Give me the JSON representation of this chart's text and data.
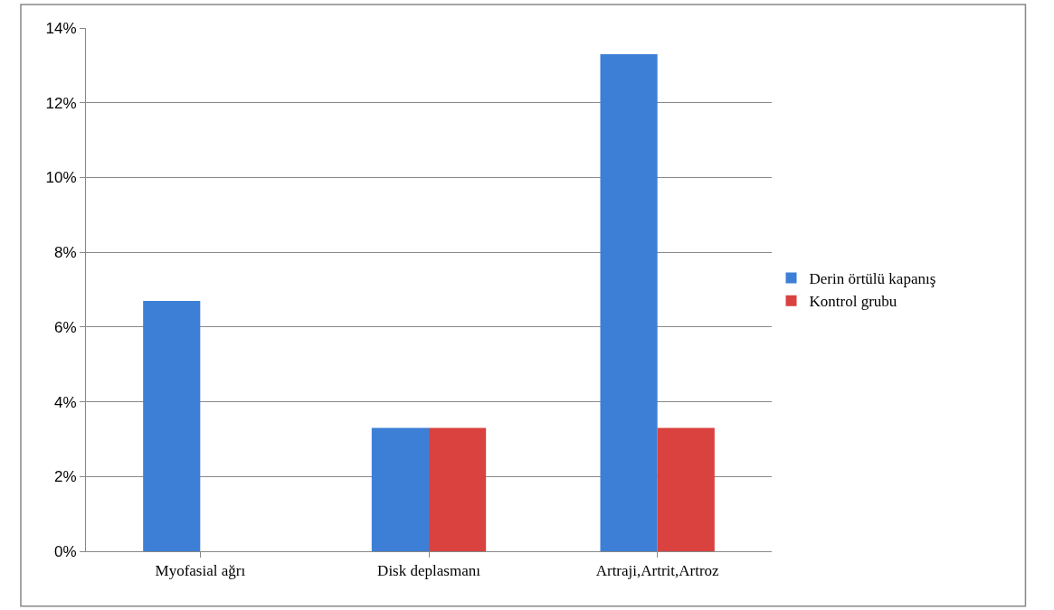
{
  "chart_data": {
    "type": "bar",
    "categories": [
      "Myofasial ağrı",
      "Disk deplasmanı",
      "Artraji,Artrit,Artroz"
    ],
    "series": [
      {
        "name": "Derin örtülü kapanış",
        "color": "#3d7fd6",
        "values": [
          6.7,
          3.3,
          13.3
        ]
      },
      {
        "name": "Kontrol grubu",
        "color": "#d9423f",
        "values": [
          0,
          3.3,
          3.3
        ]
      }
    ],
    "ylim": [
      0,
      14
    ],
    "yticks": [
      {
        "value": 0,
        "label": "0%"
      },
      {
        "value": 2,
        "label": "2%"
      },
      {
        "value": 4,
        "label": "4%"
      },
      {
        "value": 6,
        "label": "6%"
      },
      {
        "value": 8,
        "label": "8%"
      },
      {
        "value": 10,
        "label": "10%"
      },
      {
        "value": 12,
        "label": "12%"
      },
      {
        "value": 14,
        "label": "14%"
      }
    ],
    "grid": "y",
    "legend": "right"
  }
}
